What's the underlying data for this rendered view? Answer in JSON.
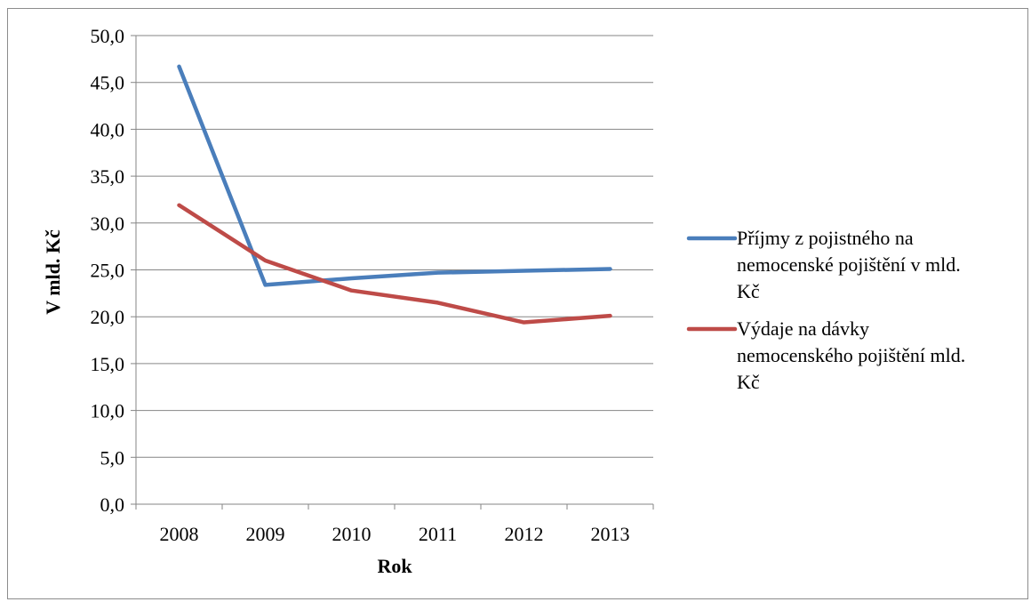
{
  "chart_data": {
    "type": "line",
    "categories": [
      "2008",
      "2009",
      "2010",
      "2011",
      "2012",
      "2013"
    ],
    "series": [
      {
        "name": "Příjmy z pojistného na nemocenské pojištění v mld. Kč",
        "legend_lines": [
          "Příjmy z pojistného na",
          "nemocenské pojištění v mld.",
          "Kč"
        ],
        "color": "#4a7ebb",
        "values": [
          46.7,
          23.4,
          24.1,
          24.7,
          24.9,
          25.1
        ]
      },
      {
        "name": "Výdaje na dávky nemocenského pojištění mld. Kč",
        "legend_lines": [
          "Výdaje na dávky",
          "nemocenského pojištění mld.",
          "Kč"
        ],
        "color": "#be4b48",
        "values": [
          31.9,
          26.0,
          22.8,
          21.5,
          19.4,
          20.1
        ]
      }
    ],
    "xlabel": "Rok",
    "ylabel": "V mld. Kč",
    "ylim": [
      0,
      50
    ],
    "y_ticks": [
      "0,0",
      "5,0",
      "10,0",
      "15,0",
      "20,0",
      "25,0",
      "30,0",
      "35,0",
      "40,0",
      "45,0",
      "50,0"
    ],
    "grid": true,
    "legend": "right"
  }
}
